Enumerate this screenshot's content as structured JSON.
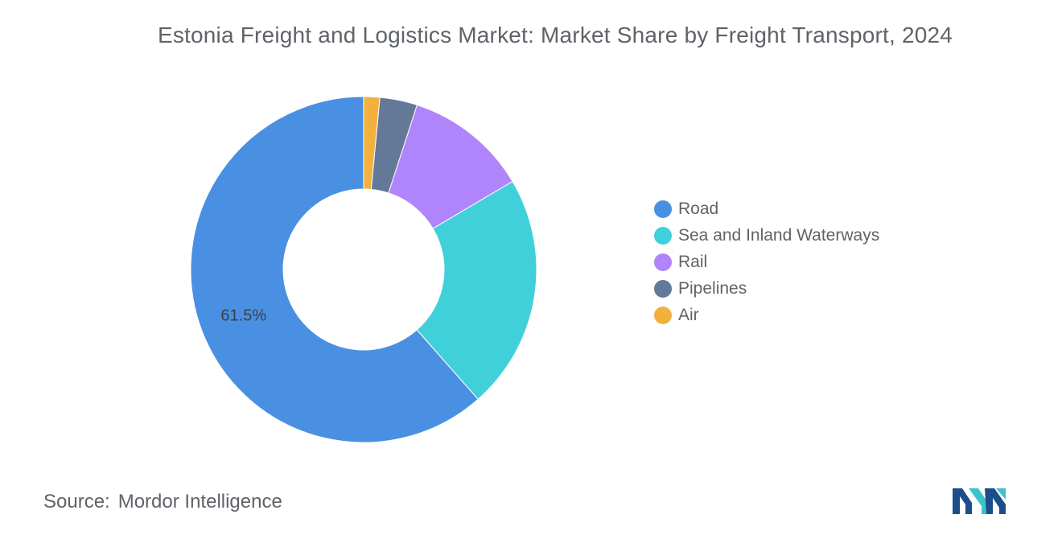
{
  "chart_data": {
    "type": "pie",
    "title": "Estonia Freight and Logistics Market: Market Share by Freight Transport, 2024",
    "series": [
      {
        "name": "Road",
        "value": 61.5,
        "color": "#4a90e2"
      },
      {
        "name": "Sea and Inland Waterways",
        "value": 22.0,
        "color": "#40d0da"
      },
      {
        "name": "Rail",
        "value": 11.5,
        "color": "#b084fb"
      },
      {
        "name": "Pipelines",
        "value": 3.5,
        "color": "#647898"
      },
      {
        "name": "Air",
        "value": 1.5,
        "color": "#f2b13d"
      }
    ],
    "data_labels": [
      "61.5%"
    ],
    "donut": true,
    "legend_position": "right"
  },
  "source": {
    "label": "Source:",
    "value": "Mordor Intelligence"
  },
  "logo": {
    "icon": "mordor-intelligence-logo-icon",
    "colors": [
      "#1d4e89",
      "#3fc1c9"
    ]
  }
}
